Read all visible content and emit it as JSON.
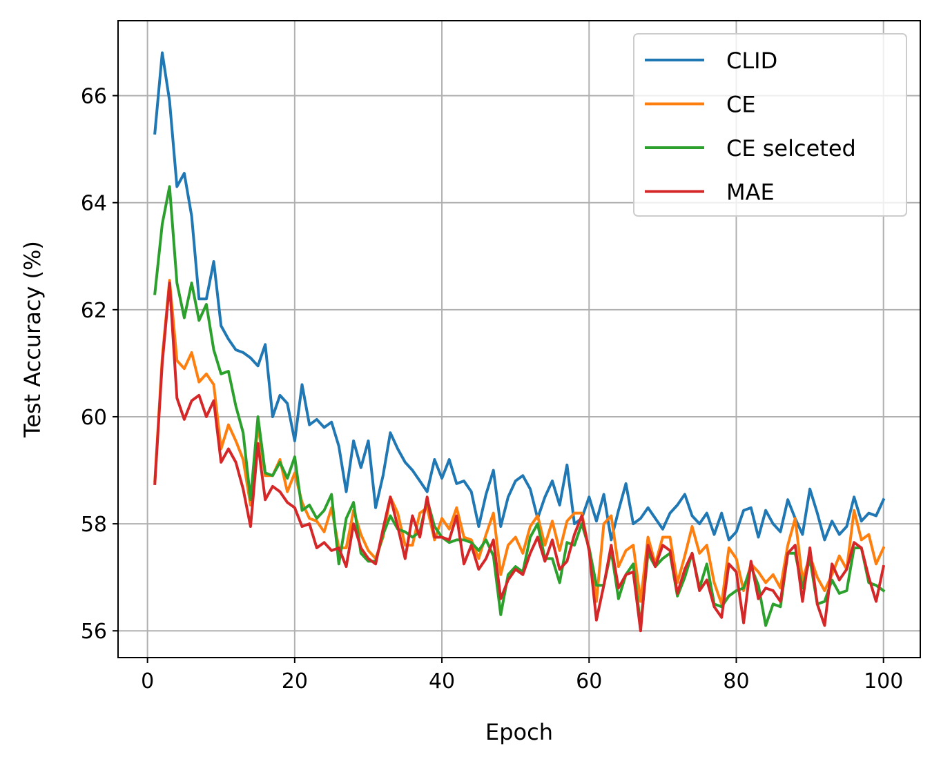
{
  "chart_data": {
    "type": "line",
    "xlabel": "Epoch",
    "ylabel": "Test Accuracy (%)",
    "xlim": [
      -4,
      105
    ],
    "ylim": [
      55.5,
      67.4
    ],
    "xticks": [
      0,
      20,
      40,
      60,
      80,
      100
    ],
    "yticks": [
      56,
      58,
      60,
      62,
      64,
      66
    ],
    "grid": true,
    "legend_position": "top-right",
    "x": [
      1,
      2,
      3,
      4,
      5,
      6,
      7,
      8,
      9,
      10,
      11,
      12,
      13,
      14,
      15,
      16,
      17,
      18,
      19,
      20,
      21,
      22,
      23,
      24,
      25,
      26,
      27,
      28,
      29,
      30,
      31,
      32,
      33,
      34,
      35,
      36,
      37,
      38,
      39,
      40,
      41,
      42,
      43,
      44,
      45,
      46,
      47,
      48,
      49,
      50,
      51,
      52,
      53,
      54,
      55,
      56,
      57,
      58,
      59,
      60,
      61,
      62,
      63,
      64,
      65,
      66,
      67,
      68,
      69,
      70,
      71,
      72,
      73,
      74,
      75,
      76,
      77,
      78,
      79,
      80,
      81,
      82,
      83,
      84,
      85,
      86,
      87,
      88,
      89,
      90,
      91,
      92,
      93,
      94,
      95,
      96,
      97,
      98,
      99,
      100
    ],
    "series": [
      {
        "name": "CLID",
        "color": "#1f77b4",
        "values": [
          65.3,
          66.8,
          65.9,
          64.3,
          64.55,
          63.75,
          62.2,
          62.2,
          62.9,
          61.7,
          61.45,
          61.25,
          61.2,
          61.1,
          60.95,
          61.35,
          60.0,
          60.4,
          60.25,
          59.55,
          60.6,
          59.85,
          59.95,
          59.8,
          59.9,
          59.45,
          58.6,
          59.55,
          59.05,
          59.55,
          58.3,
          58.9,
          59.7,
          59.4,
          59.15,
          59.0,
          58.8,
          58.6,
          59.2,
          58.85,
          59.2,
          58.75,
          58.8,
          58.6,
          57.95,
          58.55,
          59.0,
          57.95,
          58.5,
          58.8,
          58.9,
          58.65,
          58.1,
          58.5,
          58.8,
          58.35,
          59.1,
          58.0,
          58.1,
          58.5,
          58.05,
          58.55,
          57.7,
          58.25,
          58.75,
          58.0,
          58.1,
          58.3,
          58.1,
          57.9,
          58.2,
          58.35,
          58.55,
          58.15,
          58.0,
          58.2,
          57.8,
          58.2,
          57.7,
          57.85,
          58.25,
          58.3,
          57.75,
          58.25,
          58.0,
          57.85,
          58.45,
          58.1,
          57.8,
          58.65,
          58.2,
          57.7,
          58.05,
          57.8,
          57.95,
          58.5,
          58.05,
          58.2,
          58.15,
          58.45
        ]
      },
      {
        "name": "CE",
        "color": "#ff7f0e",
        "values": [
          58.8,
          61.1,
          62.55,
          61.05,
          60.9,
          61.2,
          60.65,
          60.8,
          60.6,
          59.4,
          59.85,
          59.55,
          59.2,
          58.35,
          59.85,
          58.9,
          58.9,
          59.2,
          58.6,
          58.95,
          58.4,
          58.1,
          58.05,
          57.85,
          58.3,
          57.55,
          57.55,
          58.25,
          57.8,
          57.5,
          57.35,
          57.75,
          58.5,
          58.2,
          57.6,
          57.6,
          58.2,
          58.3,
          57.7,
          58.1,
          57.9,
          58.3,
          57.75,
          57.7,
          57.35,
          57.8,
          58.2,
          57.05,
          57.6,
          57.75,
          57.45,
          57.95,
          58.15,
          57.6,
          58.05,
          57.5,
          58.05,
          58.2,
          58.2,
          57.5,
          56.55,
          58.0,
          58.15,
          57.2,
          57.5,
          57.6,
          56.55,
          57.75,
          57.25,
          57.75,
          57.75,
          56.9,
          57.4,
          57.95,
          57.45,
          57.6,
          56.9,
          56.5,
          57.55,
          57.35,
          56.75,
          57.25,
          57.1,
          56.9,
          57.05,
          56.8,
          57.6,
          58.1,
          56.95,
          57.4,
          57.0,
          56.75,
          57.05,
          57.4,
          57.15,
          58.25,
          57.7,
          57.8,
          57.25,
          57.55
        ]
      },
      {
        "name": "CE selceted",
        "color": "#2ca02c",
        "values": [
          62.3,
          63.6,
          64.3,
          62.5,
          61.85,
          62.5,
          61.8,
          62.1,
          61.25,
          60.8,
          60.85,
          60.2,
          59.7,
          58.45,
          60.0,
          58.95,
          58.9,
          59.15,
          58.85,
          59.25,
          58.25,
          58.35,
          58.1,
          58.25,
          58.55,
          57.25,
          58.1,
          58.4,
          57.45,
          57.3,
          57.3,
          57.8,
          58.15,
          57.9,
          57.85,
          57.75,
          57.85,
          58.45,
          57.95,
          57.75,
          57.65,
          57.7,
          57.7,
          57.65,
          57.5,
          57.7,
          57.4,
          56.3,
          57.05,
          57.2,
          57.1,
          57.75,
          58.0,
          57.35,
          57.35,
          56.9,
          57.65,
          57.6,
          58.0,
          57.55,
          56.85,
          56.85,
          57.5,
          56.6,
          57.05,
          57.25,
          56.1,
          57.45,
          57.2,
          57.35,
          57.45,
          56.65,
          57.0,
          57.45,
          56.8,
          57.25,
          56.5,
          56.45,
          56.65,
          56.75,
          56.8,
          57.2,
          56.85,
          56.1,
          56.5,
          56.45,
          57.45,
          57.45,
          56.8,
          57.35,
          56.5,
          56.55,
          56.95,
          56.7,
          56.75,
          57.55,
          57.55,
          56.9,
          56.85,
          56.75
        ]
      },
      {
        "name": "MAE",
        "color": "#d62728",
        "values": [
          58.75,
          61.0,
          62.5,
          60.35,
          59.95,
          60.3,
          60.4,
          60.0,
          60.3,
          59.15,
          59.4,
          59.15,
          58.65,
          57.95,
          59.5,
          58.45,
          58.7,
          58.6,
          58.4,
          58.3,
          57.95,
          58.0,
          57.55,
          57.65,
          57.5,
          57.55,
          57.2,
          58.0,
          57.55,
          57.35,
          57.25,
          57.9,
          58.5,
          57.95,
          57.35,
          58.15,
          57.75,
          58.5,
          57.75,
          57.75,
          57.7,
          58.15,
          57.25,
          57.6,
          57.15,
          57.35,
          57.7,
          56.6,
          56.95,
          57.15,
          57.05,
          57.45,
          57.75,
          57.3,
          57.7,
          57.15,
          57.3,
          57.8,
          58.15,
          57.5,
          56.2,
          56.85,
          57.6,
          56.8,
          57.05,
          57.1,
          56.0,
          57.6,
          57.2,
          57.6,
          57.5,
          56.7,
          57.15,
          57.45,
          56.75,
          56.95,
          56.45,
          56.25,
          57.25,
          57.1,
          56.15,
          57.3,
          56.6,
          56.8,
          56.75,
          56.55,
          57.45,
          57.6,
          56.55,
          57.55,
          56.5,
          56.1,
          57.25,
          56.95,
          57.15,
          57.65,
          57.55,
          57.0,
          56.55,
          57.2
        ]
      }
    ]
  }
}
